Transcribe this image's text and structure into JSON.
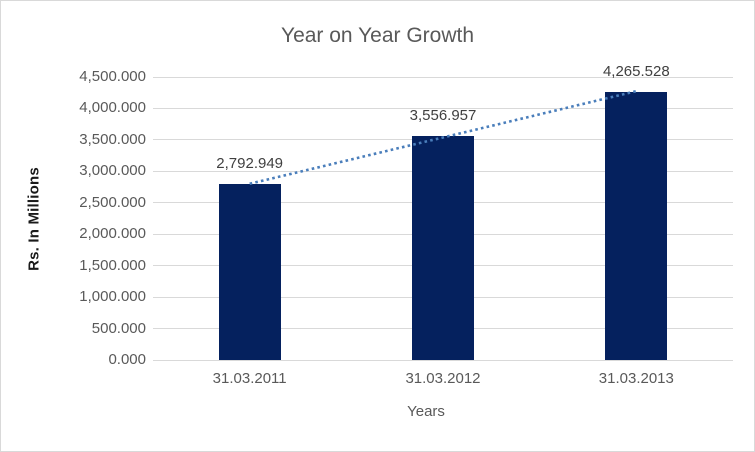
{
  "chart_data": {
    "type": "bar",
    "title": "Year on Year Growth",
    "xlabel": "Years",
    "ylabel": "Rs. In Millions",
    "categories": [
      "31.03.2011",
      "31.03.2012",
      "31.03.2013"
    ],
    "values": [
      2792.949,
      3556.957,
      4265.528
    ],
    "data_labels": [
      "2,792.949",
      "3,556.957",
      "4,265.528"
    ],
    "ylim": [
      0,
      4500
    ],
    "ytick_step": 500,
    "ytick_labels": [
      "0.000",
      "500.000",
      "1,000.000",
      "1,500.000",
      "2,000.000",
      "2,500.000",
      "3,000.000",
      "3,500.000",
      "4,000.000",
      "4,500.000"
    ],
    "grid": true,
    "legend": "none",
    "trendline": {
      "type": "linear",
      "style": "dotted"
    },
    "colors": {
      "bar": "#05215e",
      "trendline": "#4a7ebb",
      "gridline": "#d9d9d9",
      "border": "#d9d9d9",
      "background": "#ffffff",
      "title_text": "#595959",
      "axis_text": "#595959",
      "data_label_text": "#404040",
      "y_axis_title_text": "#1a1a1a"
    }
  }
}
